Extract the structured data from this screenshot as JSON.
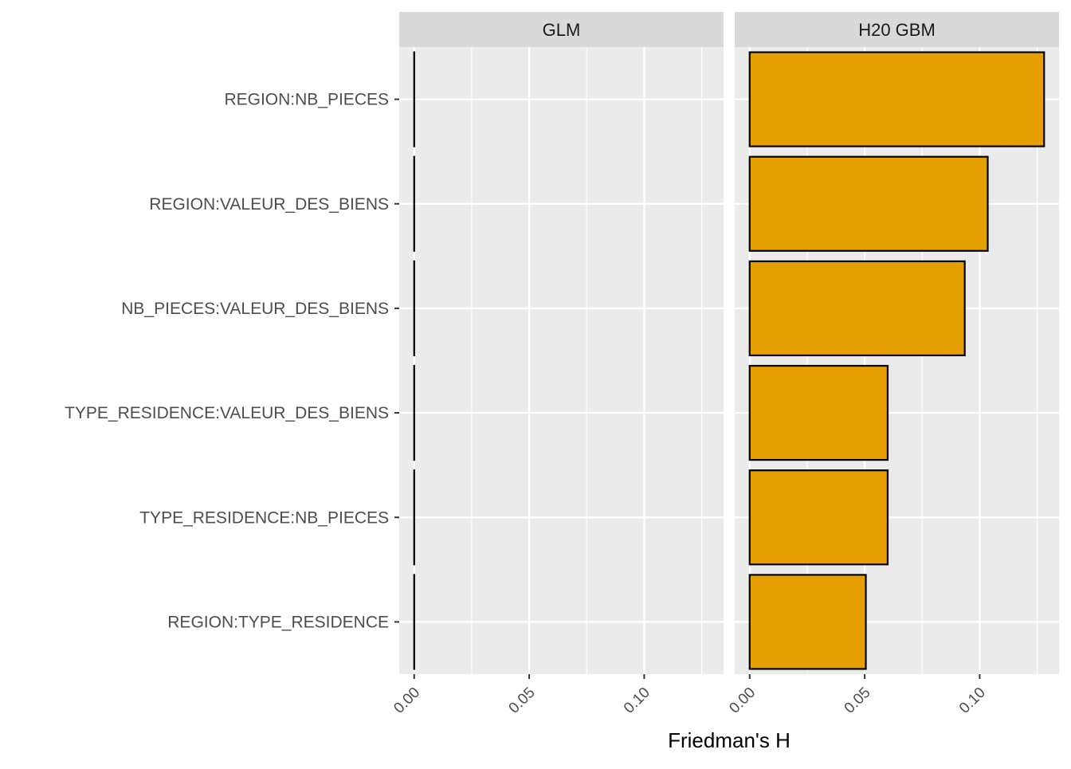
{
  "chart_data": {
    "type": "bar",
    "orientation": "horizontal",
    "xlabel": "Friedman's H",
    "ylabel": "",
    "xlim": [
      -0.0065,
      0.1345
    ],
    "x_ticks": [
      0.0,
      0.05,
      0.1
    ],
    "x_tick_labels": [
      "0.00",
      "0.05",
      "0.10"
    ],
    "grid": true,
    "legend": "none",
    "categories": [
      "REGION:NB_PIECES",
      "REGION:VALEUR_DES_BIENS",
      "NB_PIECES:VALEUR_DES_BIENS",
      "TYPE_RESIDENCE:VALEUR_DES_BIENS",
      "TYPE_RESIDENCE:NB_PIECES",
      "REGION:TYPE_RESIDENCE"
    ],
    "facets": [
      {
        "name": "GLM",
        "values": [
          0,
          0,
          0,
          0,
          0,
          0
        ]
      },
      {
        "name": "H20 GBM",
        "values": [
          0.128,
          0.1035,
          0.0935,
          0.06,
          0.06,
          0.0505
        ]
      }
    ],
    "colors": {
      "bar_fill": "#E69F00",
      "bar_stroke": "#000000",
      "panel_bg": "#EBEBEB",
      "strip_bg": "#D9D9D9",
      "grid": "#FFFFFF",
      "axis_text": "#4D4D4D",
      "title_text": "#000000",
      "strip_text": "#1A1A1A"
    }
  }
}
